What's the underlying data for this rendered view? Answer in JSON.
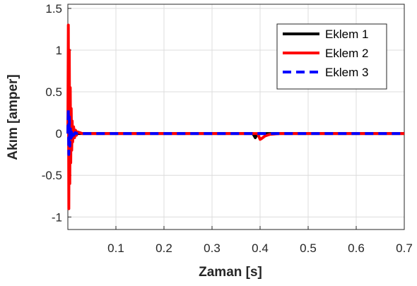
{
  "chart_data": {
    "type": "line",
    "xlabel": "Zaman [s]",
    "ylabel": "Akım [amper]",
    "xlim": [
      0,
      0.7
    ],
    "ylim": [
      -1.15,
      1.55
    ],
    "xticks": [
      0.1,
      0.2,
      0.3,
      0.4,
      0.5,
      0.6,
      0.7
    ],
    "xtick_labels": [
      "0.1",
      "0.2",
      "0.3",
      "0.4",
      "0.5",
      "0.6",
      "0.7"
    ],
    "yticks": [
      -1,
      -0.5,
      0,
      0.5,
      1,
      1.5
    ],
    "ytick_labels": [
      "-1",
      "-0.5",
      "0",
      "0.5",
      "1",
      "1.5"
    ],
    "grid": true,
    "legend_position": "top-right",
    "series": [
      {
        "name": "Eklem 1",
        "color": "#000000",
        "style": "solid",
        "x": [
          0,
          0.002,
          0.004,
          0.006,
          0.008,
          0.012,
          0.02,
          0.3,
          0.385,
          0.39,
          0.393,
          0.396,
          0.4,
          0.7
        ],
        "y": [
          0,
          0.05,
          -0.05,
          0.04,
          -0.03,
          0.01,
          0,
          0,
          0,
          -0.05,
          -0.02,
          0,
          0,
          0
        ]
      },
      {
        "name": "Eklem 2",
        "color": "#ff0000",
        "style": "solid",
        "x": [
          0,
          0.001,
          0.002,
          0.003,
          0.004,
          0.005,
          0.006,
          0.007,
          0.008,
          0.009,
          0.01,
          0.012,
          0.014,
          0.016,
          0.018,
          0.02,
          0.025,
          0.03,
          0.04,
          0.395,
          0.4,
          0.403,
          0.41,
          0.42,
          0.44,
          0.7
        ],
        "y": [
          0,
          1.3,
          -0.9,
          1.0,
          -0.6,
          0.55,
          -0.35,
          0.3,
          -0.2,
          0.15,
          -0.1,
          0.08,
          -0.05,
          0.04,
          -0.02,
          0.02,
          0.01,
          0,
          0,
          0,
          -0.07,
          -0.06,
          -0.03,
          -0.01,
          0,
          0
        ]
      },
      {
        "name": "Eklem 3",
        "color": "#0000ff",
        "style": "dashed",
        "x": [
          0,
          0.001,
          0.002,
          0.003,
          0.004,
          0.005,
          0.006,
          0.007,
          0.008,
          0.01,
          0.012,
          0.015,
          0.02,
          0.7
        ],
        "y": [
          0,
          0.3,
          -0.25,
          0.2,
          -0.15,
          0.1,
          -0.08,
          0.06,
          -0.04,
          0.03,
          -0.02,
          0.01,
          0,
          0
        ]
      }
    ]
  }
}
